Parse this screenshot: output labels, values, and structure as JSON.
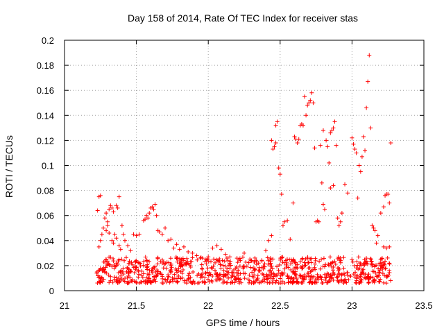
{
  "chart_data": {
    "type": "scatter",
    "title": "Day 158 of 2014, Rate Of TEC Index for receiver stas",
    "xlabel": "GPS time / hours",
    "ylabel": "ROTI / TECUs",
    "xlim": [
      21,
      23.5
    ],
    "ylim": [
      0,
      0.2
    ],
    "xticks": [
      21,
      21.5,
      22,
      22.5,
      23,
      23.5
    ],
    "xtick_labels": [
      "21",
      "21.5",
      "22",
      "22.5",
      "23",
      "23.5"
    ],
    "yticks": [
      0,
      0.02,
      0.04,
      0.06,
      0.08,
      0.1,
      0.12,
      0.14,
      0.16,
      0.18,
      0.2
    ],
    "ytick_labels": [
      "0",
      "0.02",
      "0.04",
      "0.06",
      "0.08",
      "0.1",
      "0.12",
      "0.14",
      "0.16",
      "0.18",
      "0.2"
    ],
    "grid": true,
    "marker": "+",
    "color": "#ff0000",
    "series": [
      {
        "name": "ROTI",
        "points": [
          [
            21.23,
            0.064
          ],
          [
            21.24,
            0.075
          ],
          [
            21.25,
            0.076
          ],
          [
            21.24,
            0.035
          ],
          [
            21.25,
            0.04
          ],
          [
            21.26,
            0.045
          ],
          [
            21.27,
            0.05
          ],
          [
            21.28,
            0.058
          ],
          [
            21.29,
            0.062
          ],
          [
            21.3,
            0.055
          ],
          [
            21.31,
            0.065
          ],
          [
            21.32,
            0.068
          ],
          [
            21.33,
            0.066
          ],
          [
            21.34,
            0.063
          ],
          [
            21.36,
            0.068
          ],
          [
            21.37,
            0.066
          ],
          [
            21.38,
            0.075
          ],
          [
            21.29,
            0.048
          ],
          [
            21.3,
            0.052
          ],
          [
            21.31,
            0.046
          ],
          [
            21.33,
            0.04
          ],
          [
            21.34,
            0.038
          ],
          [
            21.35,
            0.045
          ],
          [
            21.36,
            0.042
          ],
          [
            21.38,
            0.036
          ],
          [
            21.39,
            0.033
          ],
          [
            21.4,
            0.052
          ],
          [
            21.41,
            0.045
          ],
          [
            21.42,
            0.04
          ],
          [
            21.44,
            0.036
          ],
          [
            21.46,
            0.032
          ],
          [
            21.48,
            0.045
          ],
          [
            21.5,
            0.044
          ],
          [
            21.52,
            0.045
          ],
          [
            21.55,
            0.056
          ],
          [
            21.56,
            0.057
          ],
          [
            21.57,
            0.06
          ],
          [
            21.58,
            0.058
          ],
          [
            21.59,
            0.062
          ],
          [
            21.6,
            0.066
          ],
          [
            21.61,
            0.067
          ],
          [
            21.62,
            0.065
          ],
          [
            21.63,
            0.069
          ],
          [
            21.64,
            0.06
          ],
          [
            21.65,
            0.048
          ],
          [
            21.66,
            0.047
          ],
          [
            21.68,
            0.045
          ],
          [
            21.7,
            0.05
          ],
          [
            21.72,
            0.04
          ],
          [
            21.74,
            0.041
          ],
          [
            21.76,
            0.034
          ],
          [
            21.78,
            0.037
          ],
          [
            21.8,
            0.033
          ],
          [
            21.83,
            0.035
          ],
          [
            21.86,
            0.031
          ],
          [
            21.89,
            0.03
          ],
          [
            21.92,
            0.028
          ],
          [
            21.96,
            0.026
          ],
          [
            22.0,
            0.027
          ],
          [
            22.03,
            0.034
          ],
          [
            22.06,
            0.036
          ],
          [
            22.09,
            0.033
          ],
          [
            22.12,
            0.029
          ],
          [
            22.15,
            0.027
          ],
          [
            22.2,
            0.026
          ],
          [
            22.25,
            0.03
          ],
          [
            22.3,
            0.024
          ],
          [
            22.35,
            0.022
          ],
          [
            22.4,
            0.032
          ],
          [
            22.42,
            0.04
          ],
          [
            22.44,
            0.044
          ],
          [
            22.44,
            0.12
          ],
          [
            22.45,
            0.113
          ],
          [
            22.46,
            0.115
          ],
          [
            22.47,
            0.132
          ],
          [
            22.48,
            0.135
          ],
          [
            22.47,
            0.118
          ],
          [
            22.49,
            0.098
          ],
          [
            22.5,
            0.093
          ],
          [
            22.51,
            0.077
          ],
          [
            22.52,
            0.052
          ],
          [
            22.53,
            0.055
          ],
          [
            22.55,
            0.056
          ],
          [
            22.57,
            0.041
          ],
          [
            22.59,
            0.07
          ],
          [
            22.6,
            0.123
          ],
          [
            22.61,
            0.121
          ],
          [
            22.62,
            0.118
          ],
          [
            22.63,
            0.121
          ],
          [
            22.64,
            0.132
          ],
          [
            22.65,
            0.133
          ],
          [
            22.66,
            0.132
          ],
          [
            22.67,
            0.155
          ],
          [
            22.68,
            0.14
          ],
          [
            22.69,
            0.148
          ],
          [
            22.7,
            0.15
          ],
          [
            22.71,
            0.152
          ],
          [
            22.72,
            0.158
          ],
          [
            22.73,
            0.15
          ],
          [
            22.74,
            0.114
          ],
          [
            22.75,
            0.055
          ],
          [
            22.76,
            0.056
          ],
          [
            22.77,
            0.055
          ],
          [
            22.78,
            0.116
          ],
          [
            22.79,
            0.086
          ],
          [
            22.8,
            0.128
          ],
          [
            22.8,
            0.069
          ],
          [
            22.81,
            0.065
          ],
          [
            22.82,
            0.12
          ],
          [
            22.83,
            0.115
          ],
          [
            22.84,
            0.102
          ],
          [
            22.85,
            0.126
          ],
          [
            22.86,
            0.128
          ],
          [
            22.87,
            0.13
          ],
          [
            22.88,
            0.135
          ],
          [
            22.89,
            0.116
          ],
          [
            22.9,
            0.058
          ],
          [
            22.91,
            0.052
          ],
          [
            22.92,
            0.055
          ],
          [
            22.93,
            0.062
          ],
          [
            22.85,
            0.082
          ],
          [
            22.87,
            0.084
          ],
          [
            22.95,
            0.085
          ],
          [
            22.97,
            0.078
          ],
          [
            23.0,
            0.122
          ],
          [
            23.01,
            0.117
          ],
          [
            23.02,
            0.113
          ],
          [
            23.03,
            0.11
          ],
          [
            23.04,
            0.074
          ],
          [
            23.05,
            0.1
          ],
          [
            23.06,
            0.095
          ],
          [
            23.07,
            0.107
          ],
          [
            23.08,
            0.123
          ],
          [
            23.09,
            0.112
          ],
          [
            23.1,
            0.146
          ],
          [
            23.11,
            0.167
          ],
          [
            23.12,
            0.188
          ],
          [
            23.13,
            0.13
          ],
          [
            23.14,
            0.052
          ],
          [
            23.15,
            0.05
          ],
          [
            23.16,
            0.048
          ],
          [
            23.17,
            0.038
          ],
          [
            23.18,
            0.044
          ],
          [
            23.2,
            0.062
          ],
          [
            23.22,
            0.067
          ],
          [
            23.23,
            0.076
          ],
          [
            23.24,
            0.077
          ],
          [
            23.25,
            0.077
          ],
          [
            23.26,
            0.07
          ],
          [
            23.27,
            0.118
          ],
          [
            23.22,
            0.035
          ],
          [
            23.24,
            0.034
          ],
          [
            23.26,
            0.035
          ]
        ],
        "dense_band": {
          "x_range": [
            21.22,
            23.27
          ],
          "y_range": [
            0.006,
            0.027
          ],
          "count": 900
        }
      }
    ]
  }
}
